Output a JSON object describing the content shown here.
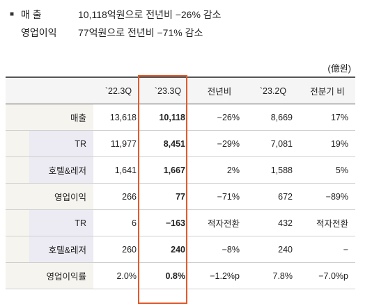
{
  "summary": [
    {
      "label": "매    출",
      "value": "10,118억원으로  전년비  −26%  감소"
    },
    {
      "label": "영업이익",
      "value": "77억원으로  전년비  −71%  감소"
    }
  ],
  "unit": "(億원)",
  "table": {
    "headers": [
      "`22.3Q",
      "`23.3Q",
      "전년비",
      "`23.2Q",
      "전분기 비"
    ],
    "rows": [
      {
        "label": "매출",
        "values": [
          "13,618",
          "10,118",
          "−26%",
          "8,669",
          "17%"
        ]
      },
      {
        "label": "TR",
        "values": [
          "11,977",
          "8,451",
          "−29%",
          "7,081",
          "19%"
        ]
      },
      {
        "label": "호텔&레저",
        "values": [
          "1,641",
          "1,667",
          "2%",
          "1,588",
          "5%"
        ]
      },
      {
        "label": "영업이익",
        "values": [
          "266",
          "77",
          "−71%",
          "672",
          "−89%"
        ]
      },
      {
        "label": "TR",
        "values": [
          "6",
          "−163",
          "적자전환",
          "432",
          "적자전환"
        ]
      },
      {
        "label": "호텔&레저",
        "values": [
          "260",
          "240",
          "−8%",
          "240",
          "−"
        ]
      },
      {
        "label": "영업이익률",
        "values": [
          "2.0%",
          "0.8%",
          "−1.2%p",
          "7.8%",
          "−7.0%p"
        ]
      }
    ]
  },
  "colors": {
    "highlight": "#e05a2b",
    "group_bg": "#f6f4ef",
    "sub_bg": "#eceaf2"
  }
}
